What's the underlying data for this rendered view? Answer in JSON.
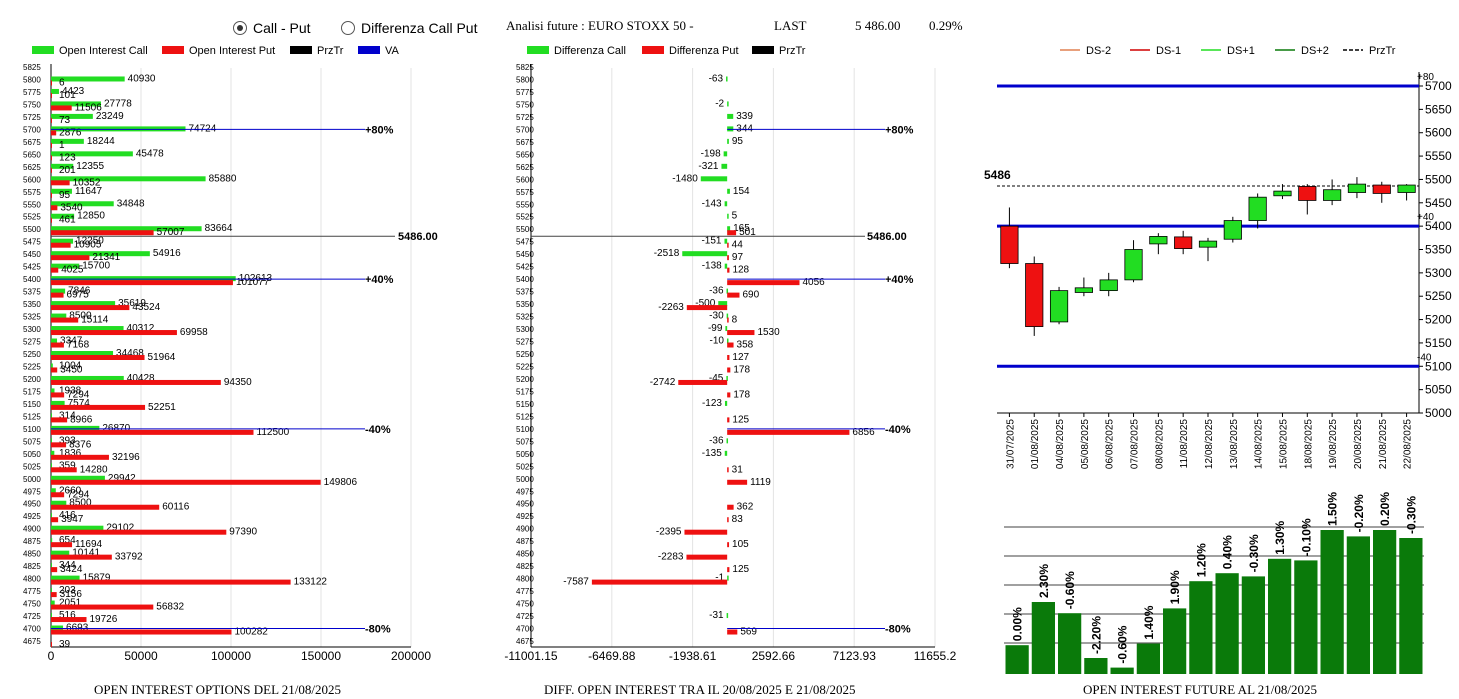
{
  "toggle": {
    "option_a": "Call - Put",
    "option_b": "Differenza Call Put",
    "selected": "a"
  },
  "header": {
    "title": "Analisi future : EURO STOXX 50 -",
    "last_label": "LAST",
    "last_value": "5 486.00",
    "change": "0.29%"
  },
  "colors": {
    "green": "#22dd22",
    "red": "#ee1111",
    "black": "#000000",
    "blue": "#0000cc",
    "dark_green": "#0a7a0a"
  },
  "legend1": [
    "Open Interest Call",
    "Open Interest Put",
    "PrzTr",
    "VA"
  ],
  "legend2": [
    "Differenza Call",
    "Differenza Put",
    "PrzTr"
  ],
  "legend3": [
    "DS-2",
    "DS-1",
    "DS+1",
    "DS+2",
    "PrzTr"
  ],
  "captions": {
    "c1": "OPEN INTEREST OPTIONS DEL 21/08/2025",
    "c2": "DIFF. OPEN INTEREST TRA IL 20/08/2025 E 21/08/2025",
    "c3": "OPEN INTEREST FUTURE AL 21/08/2025"
  },
  "chart_data": [
    {
      "type": "bar",
      "orientation": "horizontal",
      "strikes": [
        5825,
        5800,
        5775,
        5750,
        5725,
        5700,
        5675,
        5650,
        5625,
        5600,
        5575,
        5550,
        5525,
        5500,
        5475,
        5450,
        5425,
        5400,
        5375,
        5350,
        5325,
        5300,
        5275,
        5250,
        5225,
        5200,
        5175,
        5150,
        5125,
        5100,
        5075,
        5050,
        5025,
        5000,
        4975,
        4950,
        4925,
        4900,
        4875,
        4850,
        4825,
        4800,
        4775,
        4750,
        4725,
        4700,
        4675
      ],
      "series": [
        {
          "name": "Open Interest Call",
          "values": [
            null,
            40930,
            4423,
            27778,
            23249,
            74724,
            18244,
            45478,
            12355,
            85880,
            11647,
            34848,
            12850,
            83664,
            12250,
            54916,
            15700,
            102613,
            7846,
            35619,
            8500,
            40312,
            3347,
            34468,
            1004,
            40428,
            1938,
            7574,
            314,
            26870,
            393,
            1836,
            359,
            29942,
            2660,
            8500,
            416,
            29102,
            654,
            10141,
            344,
            15879,
            203,
            2051,
            516,
            6693,
            null
          ]
        },
        {
          "name": "Open Interest Put",
          "values": [
            null,
            6,
            101,
            11506,
            73,
            2876,
            1,
            123,
            201,
            10352,
            95,
            3540,
            461,
            57007,
            10905,
            21341,
            4025,
            101077,
            6975,
            43524,
            15114,
            69958,
            7168,
            51964,
            3450,
            94350,
            7294,
            52251,
            8966,
            112500,
            8376,
            32196,
            14280,
            149806,
            7294,
            60116,
            3947,
            97390,
            11694,
            33792,
            3424,
            133122,
            3156,
            56832,
            19726,
            100282,
            39
          ]
        }
      ],
      "reference_lines": [
        {
          "label": "5486.00",
          "value": 5486
        },
        {
          "label": "+80%",
          "value": 5700
        },
        {
          "label": "+40%",
          "value": 5400
        },
        {
          "label": "-40%",
          "value": 5100
        },
        {
          "label": "-80%",
          "value": 4700
        }
      ],
      "xticks": [
        0,
        50000,
        100000,
        150000,
        200000
      ],
      "xlim": [
        0,
        200000
      ]
    },
    {
      "type": "bar",
      "orientation": "horizontal",
      "strikes": [
        5825,
        5800,
        5775,
        5750,
        5725,
        5700,
        5675,
        5650,
        5625,
        5600,
        5575,
        5550,
        5525,
        5500,
        5475,
        5450,
        5425,
        5400,
        5375,
        5350,
        5325,
        5300,
        5275,
        5250,
        5225,
        5200,
        5175,
        5150,
        5125,
        5100,
        5075,
        5050,
        5025,
        5000,
        4975,
        4950,
        4925,
        4900,
        4875,
        4850,
        4825,
        4800,
        4775,
        4750,
        4725,
        4700,
        4675
      ],
      "series": [
        {
          "name": "Differenza Call",
          "values": [
            null,
            -63,
            null,
            -2,
            339,
            344,
            95,
            -198,
            -321,
            -1480,
            154,
            -143,
            5,
            165,
            -151,
            -2518,
            -138,
            null,
            -36,
            -500,
            -30,
            -99,
            -10,
            null,
            null,
            -45,
            null,
            -123,
            null,
            null,
            -36,
            -135,
            null,
            null,
            null,
            null,
            null,
            null,
            null,
            null,
            null,
            -1,
            null,
            null,
            -31,
            null,
            null
          ]
        },
        {
          "name": "Differenza Put",
          "values": [
            null,
            null,
            null,
            null,
            null,
            null,
            null,
            null,
            null,
            null,
            null,
            null,
            null,
            501,
            44,
            97,
            128,
            4056,
            690,
            -2263,
            8,
            1530,
            358,
            127,
            178,
            -2742,
            178,
            null,
            125,
            6856,
            null,
            null,
            31,
            1119,
            null,
            362,
            83,
            -2395,
            105,
            -2283,
            125,
            -7587,
            null,
            null,
            null,
            569,
            null
          ]
        }
      ],
      "reference_lines": [
        {
          "label": "5486.00",
          "value": 5486
        },
        {
          "label": "+80%",
          "value": 5700
        },
        {
          "label": "+40%",
          "value": 5400
        },
        {
          "label": "-40%",
          "value": 5100
        },
        {
          "label": "-80%",
          "value": 4700
        }
      ],
      "xticks": [
        "-11001.15",
        "-6469.88",
        "-1938.61",
        "2592.66",
        "7123.93",
        "11655.2"
      ],
      "xlim": [
        -11001.15,
        11655.2
      ]
    },
    {
      "type": "candlestick",
      "dates": [
        "31/07/2025",
        "01/08/2025",
        "04/08/2025",
        "05/08/2025",
        "06/08/2025",
        "07/08/2025",
        "08/08/2025",
        "11/08/2025",
        "12/08/2025",
        "13/08/2025",
        "14/08/2025",
        "15/08/2025",
        "18/08/2025",
        "19/08/2025",
        "20/08/2025",
        "21/08/2025",
        "22/08/2025"
      ],
      "candles": [
        {
          "open": 5400,
          "high": 5440,
          "low": 5310,
          "close": 5320
        },
        {
          "open": 5320,
          "high": 5335,
          "low": 5165,
          "close": 5185
        },
        {
          "open": 5195,
          "high": 5270,
          "low": 5190,
          "close": 5262
        },
        {
          "open": 5258,
          "high": 5290,
          "low": 5250,
          "close": 5268
        },
        {
          "open": 5262,
          "high": 5300,
          "low": 5250,
          "close": 5285
        },
        {
          "open": 5285,
          "high": 5370,
          "low": 5280,
          "close": 5350
        },
        {
          "open": 5362,
          "high": 5385,
          "low": 5340,
          "close": 5378
        },
        {
          "open": 5377,
          "high": 5390,
          "low": 5340,
          "close": 5352
        },
        {
          "open": 5355,
          "high": 5375,
          "low": 5325,
          "close": 5368
        },
        {
          "open": 5372,
          "high": 5420,
          "low": 5365,
          "close": 5412
        },
        {
          "open": 5412,
          "high": 5470,
          "low": 5395,
          "close": 5462
        },
        {
          "open": 5465,
          "high": 5490,
          "low": 5458,
          "close": 5475
        },
        {
          "open": 5485,
          "high": 5490,
          "low": 5425,
          "close": 5455
        },
        {
          "open": 5455,
          "high": 5500,
          "low": 5445,
          "close": 5478
        },
        {
          "open": 5472,
          "high": 5505,
          "low": 5460,
          "close": 5490
        },
        {
          "open": 5488,
          "high": 5495,
          "low": 5450,
          "close": 5470
        },
        {
          "open": 5472,
          "high": 5490,
          "low": 5455,
          "close": 5488
        }
      ],
      "last_price": {
        "label": "5486",
        "value": 5486
      },
      "bands": [
        {
          "label": "+80",
          "value": 5700
        },
        {
          "label": "+40",
          "value": 5400
        },
        {
          "label": "-40",
          "value": 5100
        }
      ],
      "yticks": [
        5000,
        5050,
        5100,
        5150,
        5200,
        5250,
        5300,
        5350,
        5400,
        5450,
        5500,
        5550,
        5600,
        5650,
        5700
      ],
      "ylim": [
        5000,
        5730
      ]
    },
    {
      "type": "bar",
      "values": [
        0.0,
        2.3,
        -0.6,
        -2.2,
        -0.6,
        1.4,
        1.9,
        1.2,
        0.4,
        -0.3,
        1.3,
        -0.1,
        1.5,
        -0.2,
        0.2,
        -0.3
      ],
      "labels": [
        "0.00%",
        "2.30%",
        "-0.60%",
        "-2.20%",
        "-0.60%",
        "1.40%",
        "1.90%",
        "1.20%",
        "0.40%",
        "-0.30%",
        "1.30%",
        "-0.10%",
        "1.50%",
        "-0.20%",
        "0.20%",
        "-0.30%"
      ],
      "relative_heights": [
        0.18,
        0.45,
        0.38,
        0.1,
        0.04,
        0.19,
        0.41,
        0.58,
        0.63,
        0.61,
        0.72,
        0.71,
        0.9,
        0.86,
        0.9,
        0.85
      ]
    }
  ]
}
